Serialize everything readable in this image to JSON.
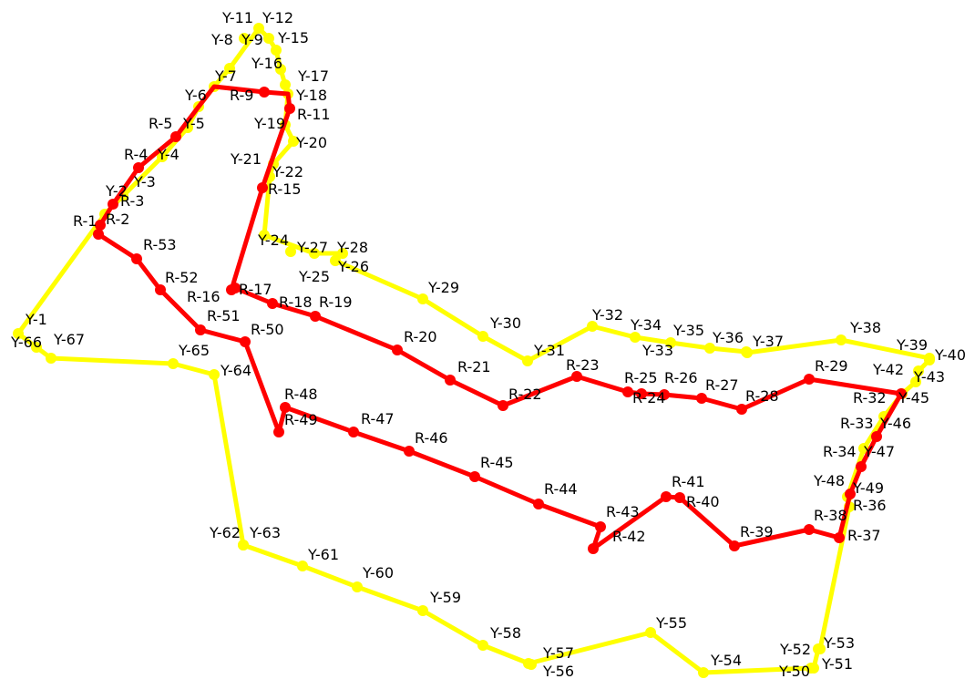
{
  "colors": {
    "background": "#ffffff",
    "yellow_route": "#ffff00",
    "red_route": "#ff0000",
    "label": "#000000"
  },
  "routes": [
    {
      "id": "yellow",
      "color": "#ffff00",
      "points": [
        {
          "label": "Y-1"
        },
        {
          "label": "Y-2"
        },
        {
          "label": "Y-3"
        },
        {
          "label": "Y-4"
        },
        {
          "label": "Y-5"
        },
        {
          "label": "Y-6"
        },
        {
          "label": "Y-7"
        },
        {
          "label": "Y-8"
        },
        {
          "label": "Y-9"
        },
        {
          "label": "Y-11"
        },
        {
          "label": "Y-12"
        },
        {
          "label": "Y-15"
        },
        {
          "label": "Y-16"
        },
        {
          "label": "Y-17"
        },
        {
          "label": "Y-18"
        },
        {
          "label": "Y-19"
        },
        {
          "label": "Y-20"
        },
        {
          "label": "Y-21"
        },
        {
          "label": "Y-22"
        },
        {
          "label": "Y-24"
        },
        {
          "label": "Y-25"
        },
        {
          "label": "Y-26"
        },
        {
          "label": "Y-27"
        },
        {
          "label": "Y-28"
        },
        {
          "label": "Y-29"
        },
        {
          "label": "Y-30"
        },
        {
          "label": "Y-31"
        },
        {
          "label": "Y-32"
        },
        {
          "label": "Y-33"
        },
        {
          "label": "Y-34"
        },
        {
          "label": "Y-35"
        },
        {
          "label": "Y-36"
        },
        {
          "label": "Y-37"
        },
        {
          "label": "Y-38"
        },
        {
          "label": "Y-39"
        },
        {
          "label": "Y-40"
        },
        {
          "label": "Y-42"
        },
        {
          "label": "Y-43"
        },
        {
          "label": "Y-45"
        },
        {
          "label": "Y-46"
        },
        {
          "label": "Y-47"
        },
        {
          "label": "Y-48"
        },
        {
          "label": "Y-49"
        },
        {
          "label": "Y-50"
        },
        {
          "label": "Y-51"
        },
        {
          "label": "Y-52"
        },
        {
          "label": "Y-53"
        },
        {
          "label": "Y-54"
        },
        {
          "label": "Y-55"
        },
        {
          "label": "Y-56"
        },
        {
          "label": "Y-57"
        },
        {
          "label": "Y-58"
        },
        {
          "label": "Y-59"
        },
        {
          "label": "Y-60"
        },
        {
          "label": "Y-61"
        },
        {
          "label": "Y-62"
        },
        {
          "label": "Y-63"
        },
        {
          "label": "Y-64"
        },
        {
          "label": "Y-65"
        },
        {
          "label": "Y-66"
        },
        {
          "label": "Y-67"
        }
      ]
    },
    {
      "id": "red",
      "color": "#ff0000",
      "points": [
        {
          "label": "R-1"
        },
        {
          "label": "R-2"
        },
        {
          "label": "R-3"
        },
        {
          "label": "R-4"
        },
        {
          "label": "R-5"
        },
        {
          "label": "R-9"
        },
        {
          "label": "R-11"
        },
        {
          "label": "R-15"
        },
        {
          "label": "R-16"
        },
        {
          "label": "R-17"
        },
        {
          "label": "R-18"
        },
        {
          "label": "R-19"
        },
        {
          "label": "R-20"
        },
        {
          "label": "R-21"
        },
        {
          "label": "R-22"
        },
        {
          "label": "R-23"
        },
        {
          "label": "R-24"
        },
        {
          "label": "R-25"
        },
        {
          "label": "R-26"
        },
        {
          "label": "R-27"
        },
        {
          "label": "R-28"
        },
        {
          "label": "R-29"
        },
        {
          "label": "R-32"
        },
        {
          "label": "R-33"
        },
        {
          "label": "R-34"
        },
        {
          "label": "R-36"
        },
        {
          "label": "R-37"
        },
        {
          "label": "R-38"
        },
        {
          "label": "R-39"
        },
        {
          "label": "R-40"
        },
        {
          "label": "R-41"
        },
        {
          "label": "R-42"
        },
        {
          "label": "R-43"
        },
        {
          "label": "R-44"
        },
        {
          "label": "R-45"
        },
        {
          "label": "R-46"
        },
        {
          "label": "R-47"
        },
        {
          "label": "R-48"
        },
        {
          "label": "R-49"
        },
        {
          "label": "R-50"
        },
        {
          "label": "R-51"
        },
        {
          "label": "R-52"
        },
        {
          "label": "R-53"
        }
      ]
    }
  ]
}
